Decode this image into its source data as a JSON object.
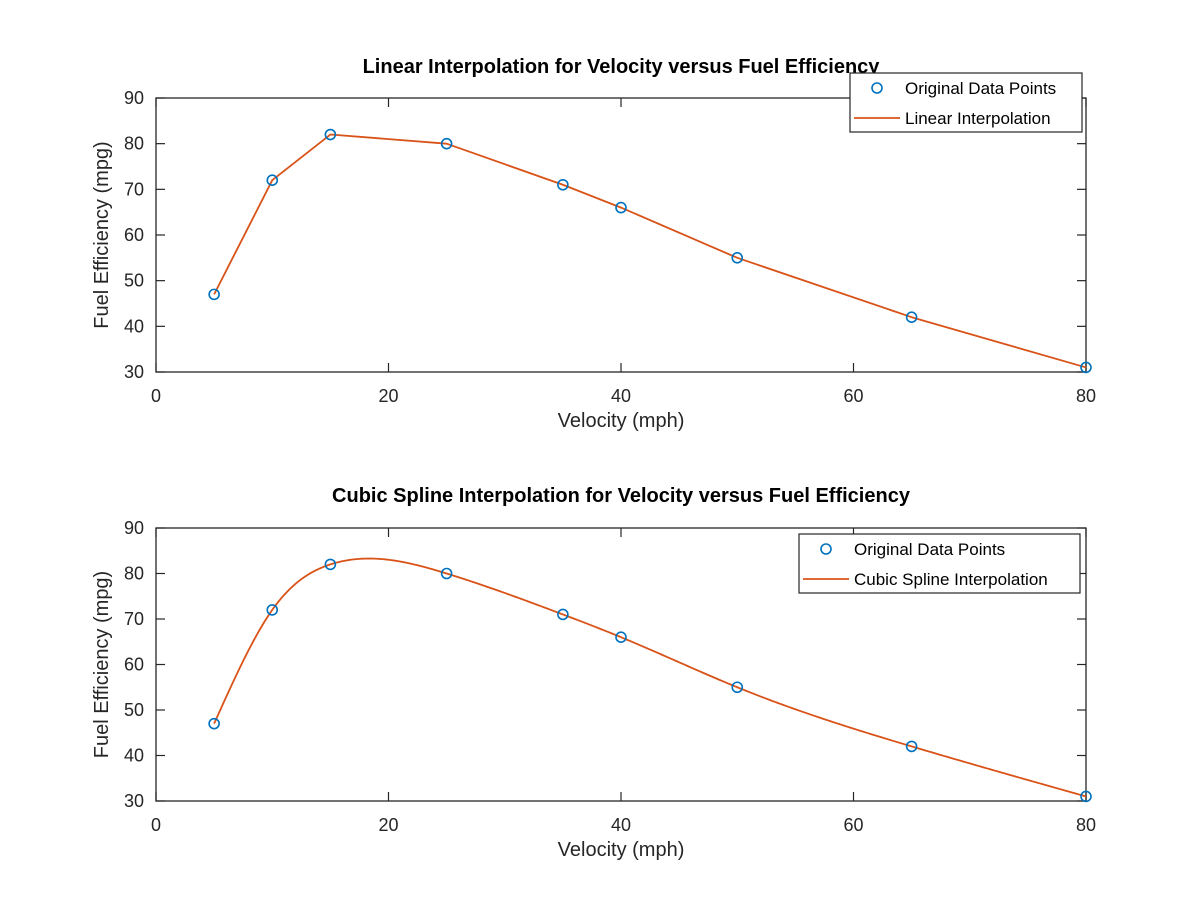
{
  "chart_data": [
    {
      "type": "line",
      "title": "Linear Interpolation for Velocity versus Fuel Efficiency",
      "xlabel": "Velocity (mph)",
      "ylabel": "Fuel Efficiency (mpg)",
      "xlim": [
        0,
        80
      ],
      "ylim": [
        30,
        90
      ],
      "xticks": [
        0,
        20,
        40,
        60,
        80
      ],
      "yticks": [
        30,
        40,
        50,
        60,
        70,
        80,
        90
      ],
      "grid": false,
      "legend_position": "top-right",
      "interpolation": "linear",
      "series": [
        {
          "name": "Original Data Points",
          "style": "markers",
          "marker": "circle",
          "color": "#0072BD",
          "x": [
            5,
            10,
            15,
            25,
            35,
            40,
            50,
            65,
            80
          ],
          "y": [
            47,
            72,
            82,
            80,
            71,
            66,
            55,
            42,
            31
          ]
        },
        {
          "name": "Linear Interpolation",
          "style": "line",
          "color": "#D95319",
          "x": [
            5,
            10,
            15,
            25,
            35,
            40,
            50,
            65,
            80
          ],
          "y": [
            47,
            72,
            82,
            80,
            71,
            66,
            55,
            42,
            31
          ]
        }
      ]
    },
    {
      "type": "line",
      "title": "Cubic Spline Interpolation for Velocity versus Fuel Efficiency",
      "xlabel": "Velocity (mph)",
      "ylabel": "Fuel Efficiency (mpg)",
      "xlim": [
        0,
        80
      ],
      "ylim": [
        30,
        90
      ],
      "xticks": [
        0,
        20,
        40,
        60,
        80
      ],
      "yticks": [
        30,
        40,
        50,
        60,
        70,
        80,
        90
      ],
      "grid": false,
      "legend_position": "top-right",
      "interpolation": "cubic spline",
      "series": [
        {
          "name": "Original Data Points",
          "style": "markers",
          "marker": "circle",
          "color": "#0072BD",
          "x": [
            5,
            10,
            15,
            25,
            35,
            40,
            50,
            65,
            80
          ],
          "y": [
            47,
            72,
            82,
            80,
            71,
            66,
            55,
            42,
            31
          ]
        },
        {
          "name": "Cubic Spline Interpolation",
          "style": "line",
          "color": "#D95319",
          "x": [
            5,
            10,
            15,
            25,
            35,
            40,
            50,
            65,
            80
          ],
          "y": [
            47,
            72,
            82,
            80,
            71,
            66,
            55,
            42,
            31
          ]
        }
      ]
    }
  ]
}
